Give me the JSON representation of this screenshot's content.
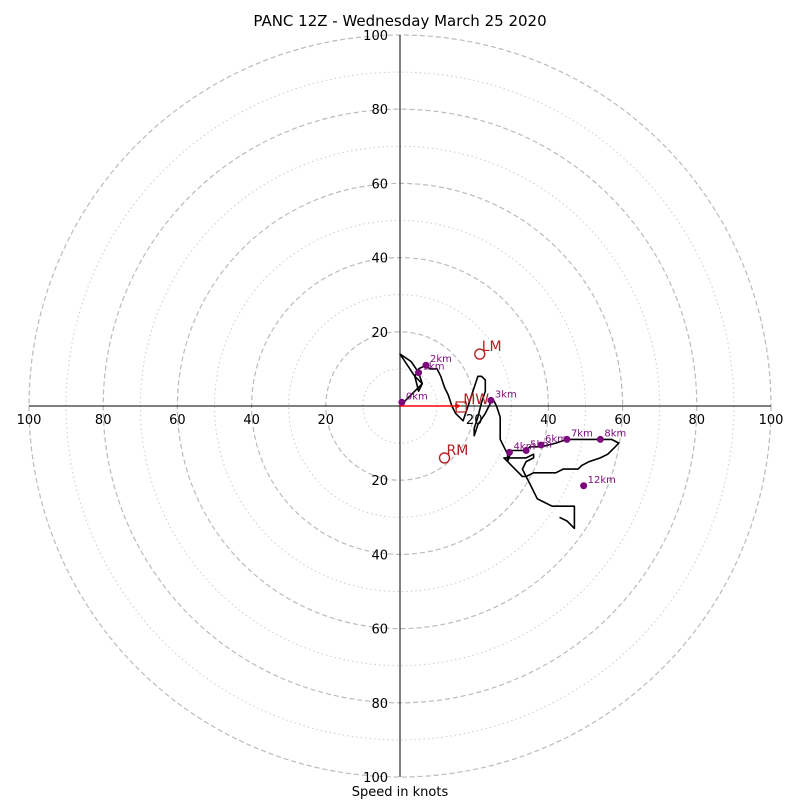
{
  "chart_data": {
    "type": "hodograph",
    "title": "PANC 12Z - Wednesday March 25 2020",
    "xlabel": "Speed in knots",
    "range": [
      -100,
      100
    ],
    "x_tick_labels": [
      "100",
      "80",
      "60",
      "40",
      "20",
      "20",
      "40",
      "60",
      "80",
      "100"
    ],
    "y_tick_labels": [
      "100",
      "80",
      "60",
      "40",
      "20",
      "20",
      "40",
      "60",
      "80",
      "100"
    ],
    "rings_major": [
      20,
      40,
      60,
      80,
      100
    ],
    "rings_minor": [
      10,
      30,
      50,
      70,
      90
    ],
    "colors": {
      "trace": "#000000",
      "height_marker": "#7d0a7d",
      "motion": "#b22222",
      "mean_wind_vector": "#ff0000",
      "ring_major": "#bbbbbb",
      "ring_minor": "#cccccc"
    },
    "trace_uv": [
      [
        0,
        0
      ],
      [
        2,
        2
      ],
      [
        4,
        4
      ],
      [
        6,
        6
      ],
      [
        5,
        9
      ],
      [
        3,
        12
      ],
      [
        0,
        14
      ],
      [
        2,
        11
      ],
      [
        4,
        8
      ],
      [
        6,
        6
      ],
      [
        5,
        4
      ],
      [
        4,
        8
      ],
      [
        5,
        10
      ],
      [
        7,
        11
      ],
      [
        8,
        10
      ],
      [
        10,
        10
      ],
      [
        11,
        8
      ],
      [
        12,
        5
      ],
      [
        13,
        3
      ],
      [
        14,
        0
      ],
      [
        15,
        -2
      ],
      [
        17,
        -4
      ],
      [
        18,
        -1
      ],
      [
        19,
        2
      ],
      [
        20,
        5
      ],
      [
        21,
        8
      ],
      [
        22,
        8
      ],
      [
        23,
        7
      ],
      [
        23,
        4
      ],
      [
        22,
        1
      ],
      [
        21,
        -3
      ],
      [
        20,
        -6
      ],
      [
        20,
        -8
      ],
      [
        21,
        -5
      ],
      [
        23,
        -2
      ],
      [
        24,
        0
      ],
      [
        25,
        2
      ],
      [
        26,
        0
      ],
      [
        27,
        -3
      ],
      [
        27,
        -6
      ],
      [
        27,
        -9
      ],
      [
        28,
        -11
      ],
      [
        29,
        -13
      ],
      [
        29,
        -15
      ],
      [
        30,
        -12
      ],
      [
        32,
        -12
      ],
      [
        34,
        -12
      ],
      [
        35,
        -11
      ],
      [
        38,
        -11
      ],
      [
        42,
        -10
      ],
      [
        45,
        -9
      ],
      [
        48,
        -9
      ],
      [
        50,
        -9
      ],
      [
        52,
        -9
      ],
      [
        54,
        -9
      ],
      [
        57,
        -9
      ],
      [
        59,
        -10
      ],
      [
        58,
        -11
      ],
      [
        56,
        -13
      ],
      [
        54,
        -14
      ],
      [
        51,
        -15
      ],
      [
        49,
        -16
      ],
      [
        48,
        -17
      ],
      [
        46,
        -17
      ],
      [
        44,
        -17
      ],
      [
        42,
        -18
      ],
      [
        40,
        -18
      ],
      [
        38,
        -18
      ],
      [
        36,
        -18
      ],
      [
        34,
        -19
      ],
      [
        33,
        -19
      ],
      [
        31,
        -17
      ],
      [
        29,
        -15
      ],
      [
        28,
        -14
      ],
      [
        30,
        -14
      ],
      [
        32,
        -14
      ],
      [
        33,
        -14
      ],
      [
        34,
        -14
      ],
      [
        36,
        -13
      ],
      [
        36,
        -14
      ],
      [
        34,
        -15
      ],
      [
        33,
        -17
      ],
      [
        34,
        -19
      ],
      [
        35,
        -21
      ],
      [
        36,
        -23
      ],
      [
        37,
        -25
      ],
      [
        39,
        -26
      ],
      [
        41,
        -27
      ],
      [
        43,
        -27
      ],
      [
        45,
        -27
      ],
      [
        47,
        -27
      ],
      [
        47,
        -30
      ],
      [
        47,
        -33
      ],
      [
        45,
        -31
      ],
      [
        43,
        -30
      ]
    ],
    "height_points": [
      {
        "label": "0km",
        "u": 0.5,
        "v": 1.0
      },
      {
        "label": "2km",
        "u": 7.0,
        "v": 11.0
      },
      {
        "label": "1km",
        "u": 5.0,
        "v": 9.0
      },
      {
        "label": "3km",
        "u": 24.5,
        "v": 1.5
      },
      {
        "label": "4km",
        "u": 29.5,
        "v": -12.5
      },
      {
        "label": "5km",
        "u": 34.0,
        "v": -12.0
      },
      {
        "label": "6km",
        "u": 38.0,
        "v": -10.5
      },
      {
        "label": "7km",
        "u": 45.0,
        "v": -9.0
      },
      {
        "label": "8km",
        "u": 54.0,
        "v": -9.0
      },
      {
        "label": "12km",
        "u": 49.5,
        "v": -21.5
      }
    ],
    "storm_motion": [
      {
        "label": "LM",
        "u": 21.5,
        "v": 14.0
      },
      {
        "label": "RM",
        "u": 12.0,
        "v": -14.0
      }
    ],
    "mean_wind": {
      "label": "MW",
      "u": 16.5,
      "v": 0.0
    }
  }
}
